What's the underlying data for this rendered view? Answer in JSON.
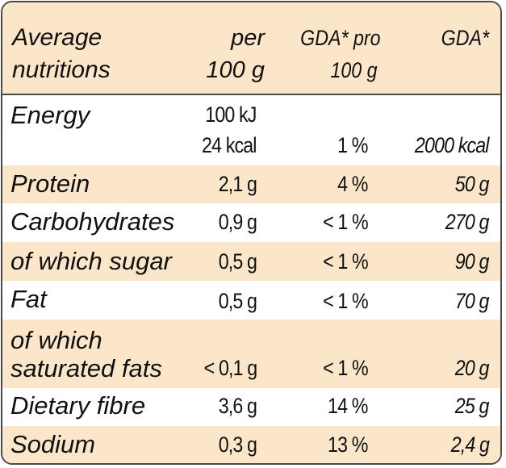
{
  "header": {
    "col_nutrient": [
      "Average",
      "nutritions"
    ],
    "col_per": [
      "per",
      "100 g"
    ],
    "col_gda_pro": [
      "GDA* pro",
      "100 g"
    ],
    "col_gda": [
      "GDA*"
    ]
  },
  "rows": [
    {
      "label": [
        "Energy"
      ],
      "per": [
        "100 kJ",
        "24 kcal"
      ],
      "pct": "1 %",
      "gda": "2000 kcal"
    },
    {
      "label": [
        "Protein"
      ],
      "per": [
        "2,1 g"
      ],
      "pct": "4 %",
      "gda": "50 g"
    },
    {
      "label": [
        "Carbohydrates"
      ],
      "per": [
        "0,9 g"
      ],
      "pct": "< 1 %",
      "gda": "270 g"
    },
    {
      "label": [
        "of which sugar"
      ],
      "per": [
        "0,5 g"
      ],
      "pct": "< 1 %",
      "gda": "90 g"
    },
    {
      "label": [
        "Fat"
      ],
      "per": [
        "0,5 g"
      ],
      "pct": "< 1 %",
      "gda": "70 g"
    },
    {
      "label": [
        "of which",
        "saturated fats"
      ],
      "per": [
        "< 0,1 g"
      ],
      "pct": "< 1 %",
      "gda": "20 g"
    },
    {
      "label": [
        "Dietary fibre"
      ],
      "per": [
        "3,6 g"
      ],
      "pct": "14 %",
      "gda": "25 g"
    },
    {
      "label": [
        "Sodium"
      ],
      "per": [
        "0,3 g"
      ],
      "pct": "13 %",
      "gda": "2,4 g"
    }
  ]
}
